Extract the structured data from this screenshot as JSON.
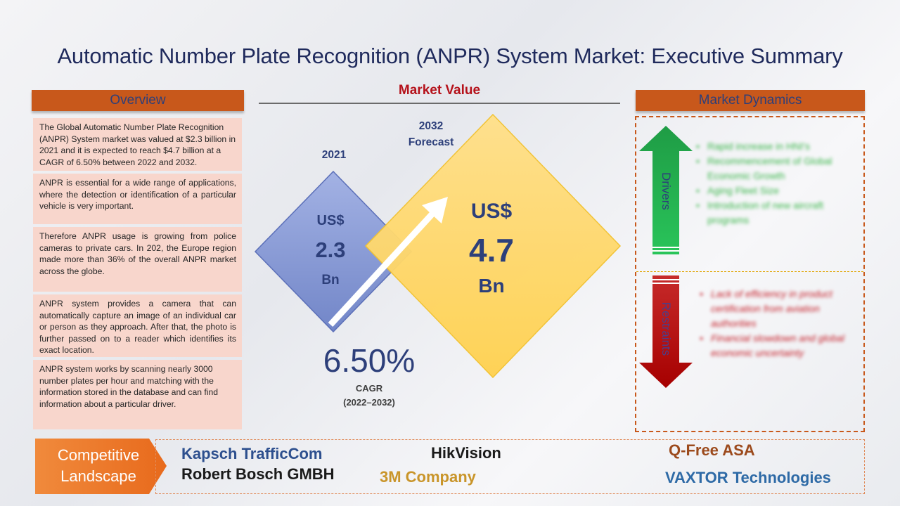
{
  "title": "Automatic Number Plate Recognition (ANPR) System Market: Executive Summary",
  "overview": {
    "header": "Overview",
    "paragraphs": [
      "The Global Automatic Number Plate Recognition (ANPR) System market was valued at $2.3 billion in 2021 and it is expected to reach $4.7 billion at a CAGR of 6.50% between 2022 and 2032.",
      "ANPR is essential for a wide range of applications, where the detection or identification of a particular vehicle is very important.",
      "Therefore ANPR usage is growing from police cameras to private cars. In 202, the Europe region made more than 36% of the overall ANPR market across the globe.",
      "ANPR system provides a camera that can automatically capture an image of an individual car or person as they approach. After that, the photo is further passed on to a reader which identifies its exact location.",
      "ANPR system works by scanning nearly 3000 number plates per hour and matching with the information stored in the database and can find information about a particular driver."
    ]
  },
  "market_value": {
    "title": "Market Value",
    "year_2021": "2021",
    "year_2032_line1": "2032",
    "year_2032_line2": "Forecast",
    "value_2021": {
      "currency": "US$",
      "amount": "2.3",
      "unit": "Bn"
    },
    "value_2032": {
      "currency": "US$",
      "amount": "4.7",
      "unit": "Bn"
    },
    "cagr_value": "6.50%",
    "cagr_label": "CAGR",
    "cagr_period": "(2022–2032)"
  },
  "market_dynamics": {
    "header": "Market Dynamics",
    "drivers_label": "Drivers",
    "drivers": [
      "Rapid increase in HNI's",
      "Recommencement of Global Economic Growth",
      "Aging Fleet Size",
      "Introduction of new aircraft programs"
    ],
    "restraints_label": "Restraints",
    "restraints": [
      "Lack of efficiency in product certification from aviation authorities",
      "Financial slowdown and global economic uncertainty"
    ]
  },
  "competitive_landscape": {
    "label_line1": "Competitive",
    "label_line2": "Landscape",
    "companies": [
      "Kapsch TrafficCom",
      "Robert Bosch GMBH",
      "HikVision",
      "3M Company",
      "Q-Free ASA",
      "VAXTOR Technologies"
    ]
  },
  "colors": {
    "title": "#1f2a5c",
    "header_bg": "#c8581b",
    "overview_bg": "#f8d6cc",
    "market_value_title": "#b5121b",
    "diamond_2021": "#8d9fd8",
    "diamond_2032": "#ffd966",
    "drivers_arrow": "#1fa34a",
    "restraints_arrow": "#c00000",
    "company_kapsch": "#2d4f8e",
    "company_bosch": "#1a1a1a",
    "company_hikvision": "#1a1a1a",
    "company_3m": "#c9952a",
    "company_qfree": "#9c4a1c",
    "company_vaxtor": "#2e6aa6"
  },
  "icons": [
    "growth-arrow-icon",
    "drivers-up-arrow-icon",
    "restraints-down-arrow-icon",
    "competitive-chevron-icon"
  ]
}
